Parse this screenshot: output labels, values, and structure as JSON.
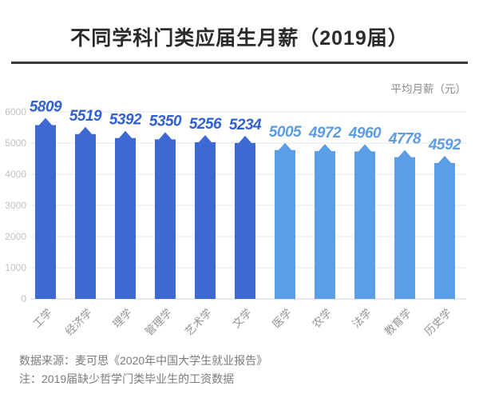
{
  "header": {
    "title": "不同学科门类应届生月薪（2019届）"
  },
  "chart_data": {
    "type": "bar",
    "title": "不同学科门类应届生月薪（2019届）",
    "unit_label": "平均月薪（元）",
    "categories": [
      "工学",
      "经济学",
      "理学",
      "管理学",
      "艺术学",
      "文学",
      "医学",
      "农学",
      "法学",
      "教育学",
      "历史学"
    ],
    "values": [
      5809,
      5519,
      5392,
      5350,
      5256,
      5234,
      5005,
      4972,
      4960,
      4778,
      4592
    ],
    "y_ticks": [
      0,
      1000,
      2000,
      3000,
      4000,
      5000,
      6000
    ],
    "ylim": [
      0,
      6000
    ],
    "grid": true,
    "legend": "none",
    "bar_color_groups": [
      "dark",
      "dark",
      "dark",
      "dark",
      "dark",
      "dark",
      "light",
      "light",
      "light",
      "light",
      "light"
    ],
    "palette": {
      "dark_bar": "#3e69d2",
      "light_bar": "#5b9ee6",
      "dark_value_label": "#3061cf",
      "light_value_label": "#5c9ce2",
      "tick_label": "#c2c2c2",
      "grid_line": "#e7e7e7",
      "axis_line": "#d5d5d5",
      "category_label": "#949494"
    }
  },
  "footer": {
    "source": "数据来源：麦可思《2020年中国大学生就业报告》",
    "note": "注：2019届缺少哲学门类毕业生的工资数据"
  }
}
